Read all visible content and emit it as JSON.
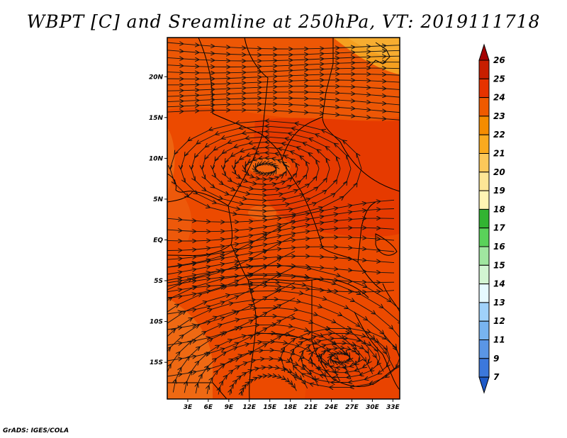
{
  "title": "WBPT [C] and Sreamline at 250hPa, VT: 2019111718",
  "credit": "GrADS: IGES/COLA",
  "map": {
    "lat_labels": [
      "20N",
      "15N",
      "10N",
      "5N",
      "EQ",
      "5S",
      "10S",
      "15S"
    ],
    "lon_labels": [
      "3E",
      "6E",
      "9E",
      "12E",
      "15E",
      "18E",
      "21E",
      "24E",
      "27E",
      "30E",
      "33E"
    ],
    "lat_values": [
      20,
      15,
      10,
      5,
      0,
      -5,
      -10,
      -15
    ],
    "lon_values": [
      3,
      6,
      9,
      12,
      15,
      18,
      21,
      24,
      27,
      30,
      33
    ],
    "extent": {
      "lon_min": 0,
      "lon_max": 34,
      "lat_min": -19.5,
      "lat_max": 24.8
    }
  },
  "colorbar": {
    "levels": [
      "26",
      "25",
      "24",
      "23",
      "22",
      "21",
      "20",
      "19",
      "18",
      "17",
      "16",
      "15",
      "14",
      "13",
      "12",
      "11",
      "9",
      "7"
    ],
    "colors": [
      "#a50000",
      "#c81e00",
      "#e63200",
      "#f05a00",
      "#f58c00",
      "#faaa1e",
      "#fcc85a",
      "#fde696",
      "#fff5b4",
      "#32b432",
      "#5ad25a",
      "#a0e6a0",
      "#d2f5d2",
      "#e6faff",
      "#a0d2fa",
      "#78b4f0",
      "#5a96e6",
      "#3c78dc",
      "#1e5ac8"
    ]
  },
  "field": {
    "dominant_color": "#ec4a00",
    "warm_color": "#e63a00",
    "cool_color": "#f27a10",
    "north_color": "#f5a020"
  }
}
